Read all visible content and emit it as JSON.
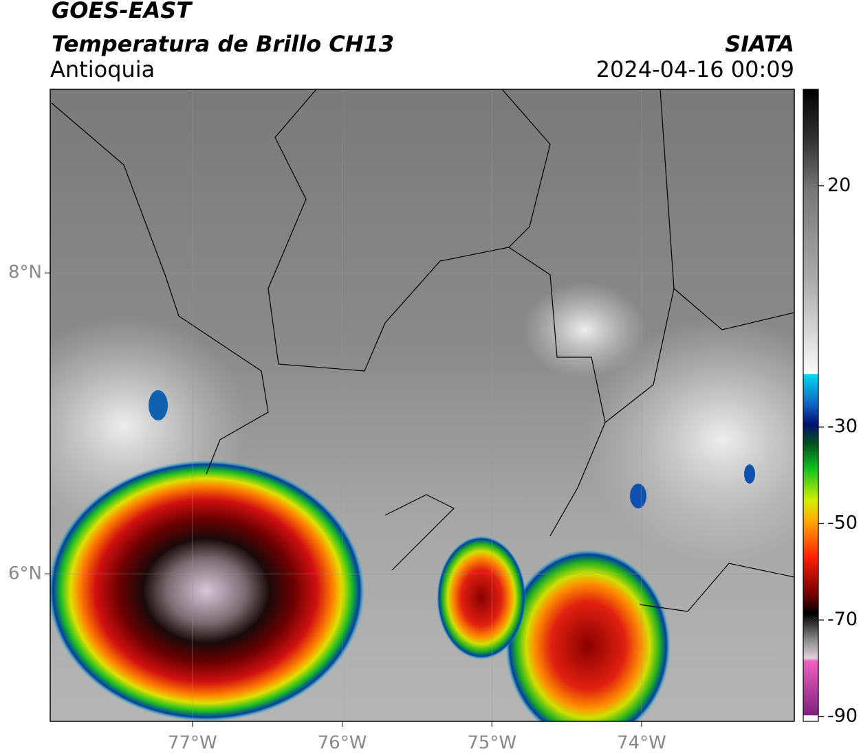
{
  "header": {
    "title": "GOES-EAST",
    "subtitle": "Temperatura de Brillo CH13",
    "region": "Antioquia",
    "source": "SIATA",
    "timestamp": "2024-04-16 00:09"
  },
  "map": {
    "lonlim": [
      -77.95,
      -72.98
    ],
    "latlim": [
      5.02,
      9.22
    ],
    "lonticks": [
      {
        "value": -77,
        "label": "77°W"
      },
      {
        "value": -76,
        "label": "76°W"
      },
      {
        "value": -75,
        "label": "75°W"
      },
      {
        "value": -74,
        "label": "74°W"
      }
    ],
    "latticks": [
      {
        "value": 8,
        "label": "8°N"
      },
      {
        "value": 6,
        "label": "6°N"
      }
    ]
  },
  "colorbar": {
    "lim": [
      -91,
      40
    ],
    "ticks": [
      20,
      -30,
      -50,
      -70,
      -90
    ]
  }
}
